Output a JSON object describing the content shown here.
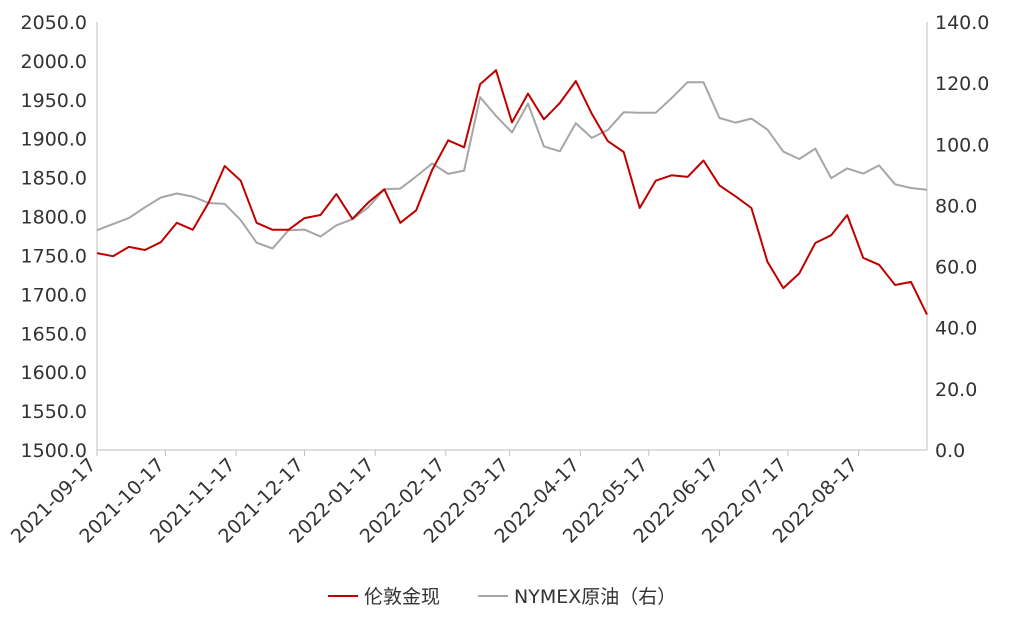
{
  "chart_data": {
    "type": "line",
    "title": "",
    "xlabel": "",
    "ylabel": "",
    "y2label": "",
    "legend_position": "bottom",
    "grid": false,
    "x_tick_labels": [
      "2021-09-17",
      "2021-10-17",
      "2021-11-17",
      "2021-12-17",
      "2022-01-17",
      "2022-02-17",
      "2022-03-17",
      "2022-04-17",
      "2022-05-17",
      "2022-06-17",
      "2022-07-17",
      "2022-08-17"
    ],
    "x_range": [
      "2021-09-17",
      "2022-09-16"
    ],
    "y_left": {
      "min": 1500,
      "max": 2050,
      "step": 50,
      "tick_labels": [
        "1500.0",
        "1550.0",
        "1600.0",
        "1650.0",
        "1700.0",
        "1750.0",
        "1800.0",
        "1850.0",
        "1900.0",
        "1950.0",
        "2000.0",
        "2050.0"
      ]
    },
    "y_right": {
      "min": 0,
      "max": 140,
      "step": 20,
      "tick_labels": [
        "0.0",
        "20.0",
        "40.0",
        "60.0",
        "80.0",
        "100.0",
        "120.0",
        "140.0"
      ]
    },
    "series": [
      {
        "name": "伦敦金现",
        "axis": "left",
        "color": "#c00000",
        "points": [
          [
            "2021-09-17",
            1753
          ],
          [
            "2021-09-24",
            1749
          ],
          [
            "2021-10-01",
            1761
          ],
          [
            "2021-10-08",
            1757
          ],
          [
            "2021-10-15",
            1767
          ],
          [
            "2021-10-22",
            1792
          ],
          [
            "2021-10-29",
            1783
          ],
          [
            "2021-11-05",
            1818
          ],
          [
            "2021-11-12",
            1865
          ],
          [
            "2021-11-19",
            1846
          ],
          [
            "2021-11-26",
            1792
          ],
          [
            "2021-12-03",
            1783
          ],
          [
            "2021-12-10",
            1783
          ],
          [
            "2021-12-17",
            1798
          ],
          [
            "2021-12-24",
            1802
          ],
          [
            "2021-12-31",
            1829
          ],
          [
            "2022-01-07",
            1797
          ],
          [
            "2022-01-14",
            1818
          ],
          [
            "2022-01-21",
            1835
          ],
          [
            "2022-01-28",
            1792
          ],
          [
            "2022-02-04",
            1808
          ],
          [
            "2022-02-11",
            1860
          ],
          [
            "2022-02-18",
            1898
          ],
          [
            "2022-02-25",
            1889
          ],
          [
            "2022-03-04",
            1970
          ],
          [
            "2022-03-11",
            1988
          ],
          [
            "2022-03-18",
            1921
          ],
          [
            "2022-03-25",
            1958
          ],
          [
            "2022-04-01",
            1925
          ],
          [
            "2022-04-08",
            1946
          ],
          [
            "2022-04-15",
            1974
          ],
          [
            "2022-04-22",
            1932
          ],
          [
            "2022-04-29",
            1897
          ],
          [
            "2022-05-06",
            1883
          ],
          [
            "2022-05-13",
            1811
          ],
          [
            "2022-05-20",
            1846
          ],
          [
            "2022-05-27",
            1853
          ],
          [
            "2022-06-03",
            1851
          ],
          [
            "2022-06-10",
            1872
          ],
          [
            "2022-06-17",
            1840
          ],
          [
            "2022-06-24",
            1826
          ],
          [
            "2022-07-01",
            1811
          ],
          [
            "2022-07-08",
            1742
          ],
          [
            "2022-07-15",
            1708
          ],
          [
            "2022-07-22",
            1727
          ],
          [
            "2022-07-29",
            1766
          ],
          [
            "2022-08-05",
            1776
          ],
          [
            "2022-08-12",
            1802
          ],
          [
            "2022-08-19",
            1747
          ],
          [
            "2022-08-26",
            1738
          ],
          [
            "2022-09-02",
            1712
          ],
          [
            "2022-09-09",
            1716
          ],
          [
            "2022-09-16",
            1674
          ]
        ]
      },
      {
        "name": "NYMEX原油（右）",
        "axis": "right",
        "color": "#a6a6a6",
        "points": [
          [
            "2021-09-17",
            71.9
          ],
          [
            "2021-09-24",
            73.9
          ],
          [
            "2021-10-01",
            75.9
          ],
          [
            "2021-10-08",
            79.4
          ],
          [
            "2021-10-15",
            82.6
          ],
          [
            "2021-10-22",
            83.9
          ],
          [
            "2021-10-29",
            82.9
          ],
          [
            "2021-11-05",
            80.8
          ],
          [
            "2021-11-12",
            80.5
          ],
          [
            "2021-11-19",
            75.2
          ],
          [
            "2021-11-26",
            67.8
          ],
          [
            "2021-12-03",
            65.9
          ],
          [
            "2021-12-10",
            71.9
          ],
          [
            "2021-12-17",
            72.1
          ],
          [
            "2021-12-24",
            69.8
          ],
          [
            "2021-12-31",
            73.5
          ],
          [
            "2022-01-07",
            75.5
          ],
          [
            "2022-01-14",
            79.4
          ],
          [
            "2022-01-21",
            85.3
          ],
          [
            "2022-01-28",
            85.5
          ],
          [
            "2022-02-04",
            89.5
          ],
          [
            "2022-02-11",
            93.7
          ],
          [
            "2022-02-18",
            90.3
          ],
          [
            "2022-02-25",
            91.4
          ],
          [
            "2022-03-04",
            115.4
          ],
          [
            "2022-03-11",
            109.3
          ],
          [
            "2022-03-18",
            103.9
          ],
          [
            "2022-03-25",
            113.3
          ],
          [
            "2022-04-01",
            99.3
          ],
          [
            "2022-04-08",
            97.7
          ],
          [
            "2022-04-15",
            106.9
          ],
          [
            "2022-04-22",
            102.1
          ],
          [
            "2022-04-29",
            104.7
          ],
          [
            "2022-05-06",
            110.5
          ],
          [
            "2022-05-13",
            110.3
          ],
          [
            "2022-05-20",
            110.3
          ],
          [
            "2022-05-27",
            115.1
          ],
          [
            "2022-06-03",
            120.3
          ],
          [
            "2022-06-10",
            120.3
          ],
          [
            "2022-06-17",
            108.6
          ],
          [
            "2022-06-24",
            107.1
          ],
          [
            "2022-07-01",
            108.4
          ],
          [
            "2022-07-08",
            104.8
          ],
          [
            "2022-07-15",
            97.6
          ],
          [
            "2022-07-22",
            95.2
          ],
          [
            "2022-07-29",
            98.6
          ],
          [
            "2022-08-05",
            88.9
          ],
          [
            "2022-08-12",
            92.1
          ],
          [
            "2022-08-19",
            90.4
          ],
          [
            "2022-08-26",
            93.1
          ],
          [
            "2022-09-02",
            86.9
          ],
          [
            "2022-09-09",
            85.7
          ],
          [
            "2022-09-16",
            85.1
          ]
        ]
      }
    ]
  }
}
